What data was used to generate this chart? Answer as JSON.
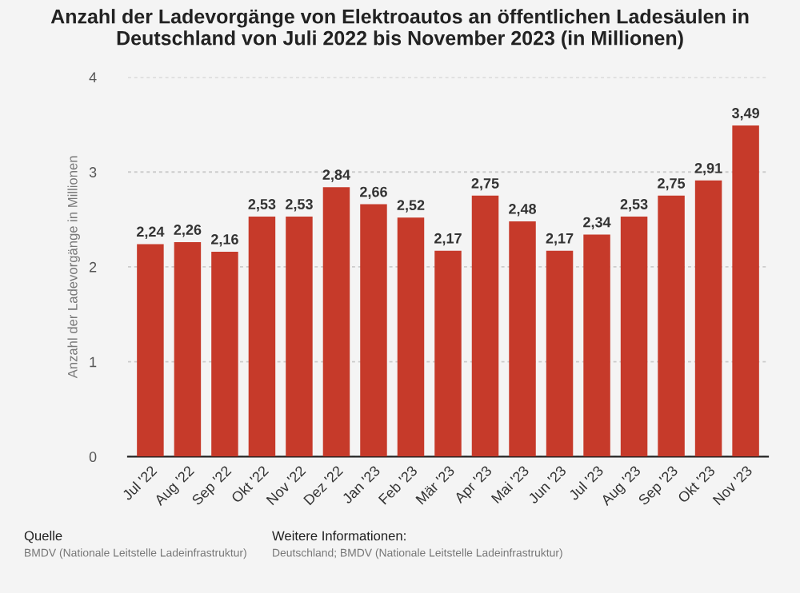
{
  "chart_data": {
    "type": "bar",
    "title": "Anzahl der Ladevorgänge von Elektroautos an öffentlichen Ladesäulen in Deutschland von Juli 2022 bis November 2023 (in Millionen)",
    "ylabel": "Anzahl der Ladevorgänge in Millionen",
    "categories": [
      "Jul '22",
      "Aug '22",
      "Sep '22",
      "Okt '22",
      "Nov '22",
      "Dez '22",
      "Jan '23",
      "Feb '23",
      "Mär '23",
      "Apr '23",
      "Mai '23",
      "Jun '23",
      "Jul '23",
      "Aug '23",
      "Sep '23",
      "Okt '23",
      "Nov '23"
    ],
    "values": [
      2.24,
      2.26,
      2.16,
      2.53,
      2.53,
      2.84,
      2.66,
      2.52,
      2.17,
      2.75,
      2.48,
      2.17,
      2.34,
      2.53,
      2.75,
      2.91,
      3.49
    ],
    "value_labels": [
      "2,24",
      "2,26",
      "2,16",
      "2,53",
      "2,53",
      "2,84",
      "2,66",
      "2,52",
      "2,17",
      "2,75",
      "2,48",
      "2,17",
      "2,34",
      "2,53",
      "2,75",
      "2,91",
      "3,49"
    ],
    "color": "#c63a2a",
    "ylim": [
      0,
      4
    ],
    "yticks": [
      0,
      1,
      2,
      3,
      4
    ],
    "grid": "y",
    "annotations": [
      "Quelle",
      "BMDV (Nationale Leitstelle Ladeinfrastruktur)",
      "Weitere Informationen:",
      "Deutschland; BMDV (Nationale Leitstelle Ladeinfrastruktur)"
    ]
  }
}
